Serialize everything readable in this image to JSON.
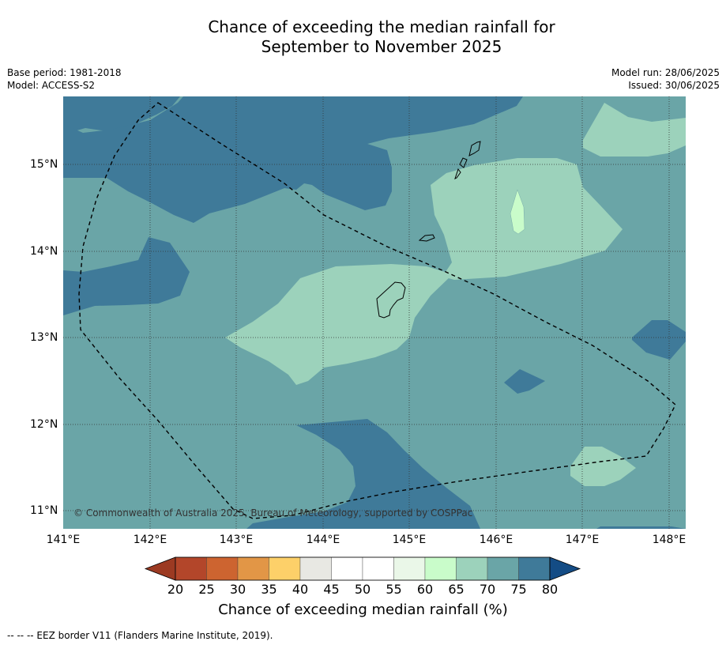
{
  "title_line1": "Chance of exceeding the median rainfall for",
  "title_line2": "September to November 2025",
  "base_period": "Base period: 1981-2018",
  "model": "Model: ACCESS-S2",
  "model_run": "Model run: 28/06/2025",
  "issued": "Issued: 30/06/2025",
  "copyright": "© Commonwealth of Australia 2025, Bureau of Meteorology, supported by COSPPac",
  "colorbar_label": "Chance of exceeding median rainfall (%)",
  "footnote": "--  --  -- EEZ border V11 (Flanders Marine Institute, 2019).",
  "lat_labels": [
    "15°N",
    "14°N",
    "13°N",
    "12°N",
    "11°N"
  ],
  "lon_labels": [
    "141°E",
    "142°E",
    "143°E",
    "144°E",
    "145°E",
    "146°E",
    "147°E",
    "148°E"
  ],
  "colorbar": {
    "ticks": [
      "20",
      "25",
      "30",
      "35",
      "40",
      "45",
      "50",
      "55",
      "60",
      "65",
      "70",
      "75",
      "80"
    ],
    "colors": [
      "#b3462a",
      "#cd6430",
      "#e29646",
      "#fdd069",
      "#e8e8e3",
      "#ffffff",
      "#ffffff",
      "#eaf7e8",
      "#c9fcca",
      "#9cd2bb",
      "#6aa5a7",
      "#3f7a99"
    ],
    "under_color": "#9c3a22",
    "over_color": "#144c85"
  },
  "colors": {
    "band_70_75": "#6aa5a7",
    "band_75_80": "#3f7a99",
    "band_65_70": "#9cd2bb",
    "band_60_65": "#c9fcca"
  }
}
